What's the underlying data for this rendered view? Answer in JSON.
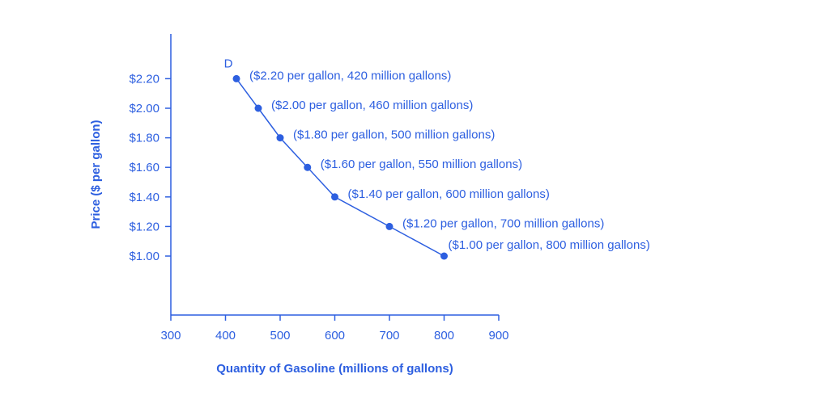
{
  "chart_data": {
    "type": "line",
    "title": "",
    "xlabel": "Quantity of Gasoline (millions of gallons)",
    "ylabel": "Price ($ per gallon)",
    "xlim": [
      300,
      900
    ],
    "ylim": [
      0.6,
      2.5
    ],
    "x_ticks": [
      300,
      400,
      500,
      600,
      700,
      800,
      900
    ],
    "x_tick_labels": [
      "300",
      "400",
      "500",
      "600",
      "700",
      "800",
      "900"
    ],
    "y_ticks": [
      1.0,
      1.2,
      1.4,
      1.6,
      1.8,
      2.0,
      2.2
    ],
    "y_tick_labels": [
      "$1.00",
      "$1.20",
      "$1.40",
      "$1.60",
      "$1.80",
      "$2.00",
      "$2.20"
    ],
    "grid": false,
    "series": [
      {
        "name": "D",
        "color": "#2d5fe0",
        "points": [
          {
            "x": 420,
            "y": 2.2,
            "label": "($2.20 per gallon, 420 million gallons)"
          },
          {
            "x": 460,
            "y": 2.0,
            "label": "($2.00 per gallon, 460 million gallons)"
          },
          {
            "x": 500,
            "y": 1.8,
            "label": "($1.80 per gallon, 500 million gallons)"
          },
          {
            "x": 550,
            "y": 1.6,
            "label": "($1.60 per gallon, 550 million gallons)"
          },
          {
            "x": 600,
            "y": 1.4,
            "label": "($1.40 per gallon, 600 million gallons)"
          },
          {
            "x": 700,
            "y": 1.2,
            "label": "($1.20 per gallon, 700 million gallons)"
          },
          {
            "x": 800,
            "y": 1.0,
            "label": "($1.00 per gallon, 800 million gallons)"
          }
        ]
      }
    ]
  }
}
